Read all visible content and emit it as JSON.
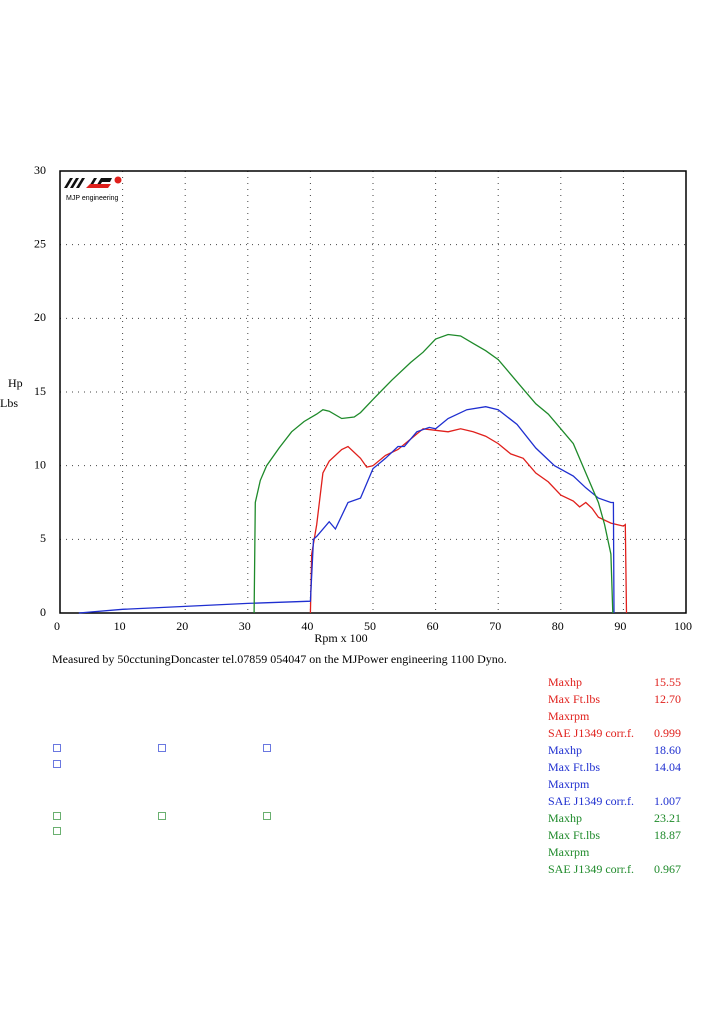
{
  "chart_data": {
    "type": "line",
    "logo": "MJP engineering",
    "ylabel": [
      "Hp",
      "Lbs"
    ],
    "xlabel": "Rpm x 100",
    "xlim": [
      0,
      100
    ],
    "xticks": [
      0,
      10,
      20,
      30,
      40,
      50,
      60,
      70,
      80,
      90,
      100
    ],
    "ylim": [
      0,
      30
    ],
    "yticks": [
      0,
      5,
      10,
      15,
      20,
      25,
      30
    ],
    "grid": true,
    "series": [
      {
        "color": "#e0201c",
        "x": [
          40,
          40.2,
          41,
          42,
          43,
          45,
          46,
          48,
          49,
          50,
          52,
          54,
          56,
          58,
          60,
          62,
          64,
          66,
          68,
          70,
          72,
          74,
          76,
          78,
          80,
          82,
          83,
          84,
          85,
          86,
          88,
          89,
          90,
          90.3,
          90.5
        ],
        "values": [
          0,
          4,
          6,
          9.5,
          10.3,
          11.1,
          11.3,
          10.5,
          9.9,
          10,
          10.7,
          11.1,
          11.8,
          12.5,
          12.4,
          12.3,
          12.5,
          12.3,
          12,
          11.5,
          10.8,
          10.5,
          9.5,
          8.9,
          8,
          7.6,
          7.2,
          7.5,
          7.1,
          6.5,
          6.1,
          6,
          5.9,
          6,
          0
        ]
      },
      {
        "color": "#1f2fd0",
        "x": [
          3,
          10,
          20,
          30,
          40,
          40.5,
          41,
          43,
          44,
          46,
          48,
          50,
          52,
          54,
          55,
          57,
          59,
          60,
          62,
          65,
          68,
          70,
          73,
          76,
          79,
          82,
          84,
          86,
          88,
          88.4,
          88.5
        ],
        "values": [
          0,
          0.25,
          0.45,
          0.65,
          0.8,
          5,
          5.2,
          6.2,
          5.7,
          7.5,
          7.8,
          9.8,
          10.5,
          11.3,
          11.3,
          12.3,
          12.6,
          12.5,
          13.2,
          13.8,
          14,
          13.8,
          12.8,
          11.2,
          10,
          9.3,
          8.5,
          7.8,
          7.5,
          7.5,
          0
        ]
      },
      {
        "color": "#1e8a2a",
        "x": [
          31,
          31.2,
          32,
          33,
          35,
          37,
          39,
          41,
          42,
          43,
          45,
          47,
          48,
          50,
          53,
          56,
          58,
          60,
          62,
          64,
          66,
          68,
          70,
          72,
          74,
          76,
          78,
          80,
          82,
          84,
          86,
          87,
          88,
          88.3
        ],
        "values": [
          0,
          7.5,
          9,
          10,
          11.2,
          12.3,
          13,
          13.5,
          13.8,
          13.7,
          13.2,
          13.3,
          13.6,
          14.5,
          15.8,
          17,
          17.7,
          18.6,
          18.9,
          18.8,
          18.3,
          17.8,
          17.2,
          16.2,
          15.2,
          14.2,
          13.5,
          12.5,
          11.5,
          9.5,
          7.5,
          6,
          4,
          0
        ]
      }
    ]
  },
  "note": "Measured by 50cctuningDoncaster tel.07859 054047 on the MJPower engineering 1100 Dyno.",
  "stats": [
    {
      "color": "#e0201c",
      "rows": [
        [
          "Maxhp",
          "15.55"
        ],
        [
          "Max Ft.lbs",
          "12.70"
        ],
        [
          "Maxrpm",
          ""
        ],
        [
          "SAE J1349 corr.f.",
          "0.999"
        ]
      ]
    },
    {
      "color": "#1f2fd0",
      "rows": [
        [
          "Maxhp",
          "18.60"
        ],
        [
          "Max Ft.lbs",
          "14.04"
        ],
        [
          "Maxrpm",
          ""
        ],
        [
          "SAE J1349 corr.f.",
          "1.007"
        ]
      ]
    },
    {
      "color": "#1e8a2a",
      "rows": [
        [
          "Maxhp",
          "23.21"
        ],
        [
          "Max Ft.lbs",
          "18.87"
        ],
        [
          "Maxrpm",
          ""
        ],
        [
          "SAE J1349 corr.f.",
          "0.967"
        ]
      ]
    }
  ]
}
